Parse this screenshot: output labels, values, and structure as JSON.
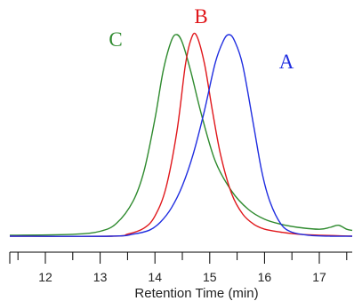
{
  "chart_data": {
    "type": "line",
    "title": "",
    "xlabel": "Retention Time (min)",
    "ylabel": "",
    "xlim": [
      11.35,
      17.6
    ],
    "ylim": [
      0,
      1.0
    ],
    "grid": false,
    "legend": "none",
    "x_ticks": [
      12,
      13,
      14,
      15,
      16,
      17
    ],
    "series": [
      {
        "name": "A",
        "color": "#1f2de0",
        "x": [
          11.35,
          13.2,
          13.6,
          13.9,
          14.1,
          14.3,
          14.5,
          14.7,
          14.9,
          15.1,
          15.25,
          15.35,
          15.45,
          15.6,
          15.8,
          15.95,
          16.1,
          16.3,
          16.5,
          16.8,
          17.2,
          17.6
        ],
        "y": [
          0.0,
          0.0,
          0.01,
          0.03,
          0.07,
          0.14,
          0.25,
          0.41,
          0.62,
          0.86,
          0.97,
          1.0,
          0.97,
          0.85,
          0.55,
          0.32,
          0.17,
          0.06,
          0.02,
          0.005,
          0.0,
          0.0
        ]
      },
      {
        "name": "B",
        "color": "#e0171b",
        "x": [
          11.35,
          13.2,
          13.5,
          13.8,
          14.0,
          14.2,
          14.4,
          14.55,
          14.65,
          14.75,
          14.9,
          15.05,
          15.2,
          15.4,
          15.6,
          15.8,
          16.0,
          16.3,
          16.6,
          17.0,
          17.6
        ],
        "y": [
          0.0,
          0.0,
          0.01,
          0.04,
          0.1,
          0.24,
          0.52,
          0.84,
          0.97,
          1.0,
          0.86,
          0.62,
          0.4,
          0.21,
          0.11,
          0.06,
          0.035,
          0.02,
          0.01,
          0.005,
          0.0
        ]
      },
      {
        "name": "C",
        "color": "#2e8a2e",
        "x": [
          11.35,
          12.5,
          13.0,
          13.3,
          13.6,
          13.8,
          14.0,
          14.15,
          14.3,
          14.4,
          14.5,
          14.65,
          14.85,
          15.1,
          15.4,
          15.7,
          16.0,
          16.3,
          16.6,
          17.0,
          17.2,
          17.35,
          17.5,
          17.6
        ],
        "y": [
          0.0,
          0.005,
          0.02,
          0.06,
          0.17,
          0.32,
          0.58,
          0.82,
          0.97,
          1.0,
          0.96,
          0.82,
          0.6,
          0.37,
          0.22,
          0.13,
          0.08,
          0.055,
          0.04,
          0.03,
          0.04,
          0.05,
          0.03,
          0.025
        ]
      }
    ]
  }
}
